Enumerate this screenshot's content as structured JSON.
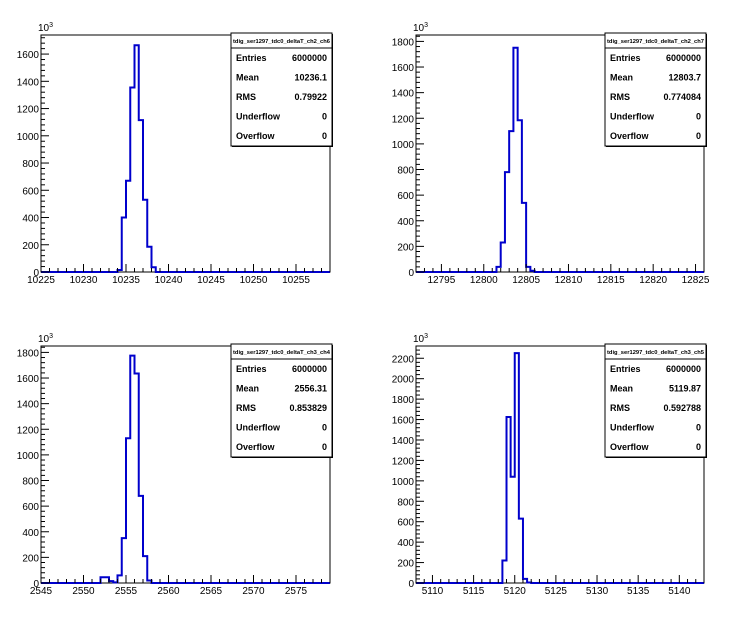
{
  "colors": {
    "histogram_line": "#0000cc",
    "axis": "#000000",
    "background": "#ffffff"
  },
  "stat_labels": [
    "Entries",
    "Mean",
    "RMS",
    "Underflow",
    "Overflow"
  ],
  "y_exponent": {
    "base": "10",
    "exp": "3"
  },
  "chart_data": [
    {
      "type": "histogram",
      "title": "tdig_ser1297_tdc0_deltaT_ch2_ch6",
      "xlim": [
        10225,
        10259
      ],
      "ylim": [
        0,
        1740
      ],
      "x_ticks": [
        10225,
        10230,
        10235,
        10240,
        10245,
        10250,
        10255
      ],
      "y_ticks": [
        0,
        200,
        400,
        600,
        800,
        1000,
        1200,
        1400,
        1600
      ],
      "bin_edges": [
        10234.0,
        10234.5,
        10235.0,
        10235.5,
        10236.0,
        10236.5,
        10237.0,
        10237.5,
        10238.0,
        10238.5
      ],
      "counts": [
        15,
        400,
        670,
        1355,
        1665,
        1115,
        530,
        185,
        35
      ],
      "stats": {
        "Entries": "6000000",
        "Mean": "10236.1",
        "RMS": "0.79922",
        "Underflow": "0",
        "Overflow": "0"
      }
    },
    {
      "type": "histogram",
      "title": "tdig_ser1297_tdc0_deltaT_ch2_ch7",
      "xlim": [
        12792,
        12826
      ],
      "ylim": [
        0,
        1850
      ],
      "x_ticks": [
        12795,
        12800,
        12805,
        12810,
        12815,
        12820,
        12825
      ],
      "y_ticks": [
        0,
        200,
        400,
        600,
        800,
        1000,
        1200,
        1400,
        1600,
        1800
      ],
      "bin_edges": [
        12801.5,
        12802.0,
        12802.5,
        12803.0,
        12803.5,
        12804.0,
        12804.5,
        12805.0,
        12805.5,
        12806.0
      ],
      "counts": [
        40,
        230,
        780,
        1100,
        1750,
        1185,
        540,
        40,
        10
      ],
      "stats": {
        "Entries": "6000000",
        "Mean": "12803.7",
        "RMS": "0.774084",
        "Underflow": "0",
        "Overflow": "0"
      }
    },
    {
      "type": "histogram",
      "title": "tdig_ser1297_tdc0_deltaT_ch3_ch4",
      "xlim": [
        2545,
        2579
      ],
      "ylim": [
        0,
        1850
      ],
      "x_ticks": [
        2545,
        2550,
        2555,
        2560,
        2565,
        2570,
        2575
      ],
      "y_ticks": [
        0,
        200,
        400,
        600,
        800,
        1000,
        1200,
        1400,
        1600,
        1800
      ],
      "bin_edges": [
        2552.0,
        2552.5,
        2553.0,
        2553.5,
        2554.0,
        2554.5,
        2555.0,
        2555.5,
        2556.0,
        2556.5,
        2557.0,
        2557.5,
        2558.0
      ],
      "counts": [
        45,
        45,
        15,
        5,
        60,
        350,
        1130,
        1775,
        1635,
        680,
        210,
        20
      ],
      "stats": {
        "Entries": "6000000",
        "Mean": "2556.31",
        "RMS": "0.853829",
        "Underflow": "0",
        "Overflow": "0"
      }
    },
    {
      "type": "histogram",
      "title": "tdig_ser1297_tdc0_deltaT_ch3_ch5",
      "xlim": [
        5108,
        5143
      ],
      "ylim": [
        0,
        2320
      ],
      "x_ticks": [
        5110,
        5115,
        5120,
        5125,
        5130,
        5135,
        5140
      ],
      "y_ticks": [
        0,
        200,
        400,
        600,
        800,
        1000,
        1200,
        1400,
        1600,
        1800,
        2000,
        2200
      ],
      "bin_edges": [
        5118.5,
        5119.0,
        5119.5,
        5120.0,
        5120.5,
        5121.0,
        5121.5,
        5122.0
      ],
      "counts": [
        220,
        1625,
        1040,
        2250,
        630,
        40,
        5
      ],
      "stats": {
        "Entries": "6000000",
        "Mean": "5119.87",
        "RMS": "0.592788",
        "Underflow": "0",
        "Overflow": "0"
      }
    }
  ]
}
